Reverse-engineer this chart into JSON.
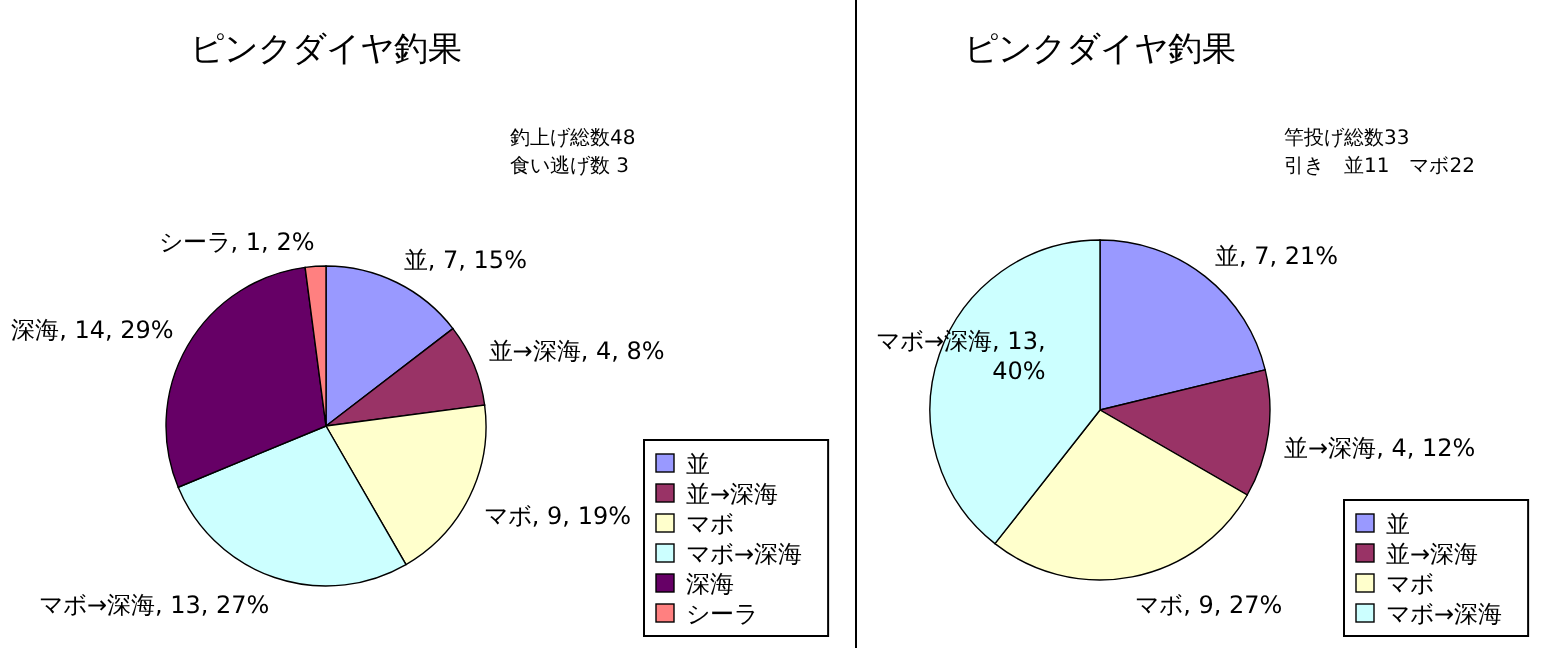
{
  "chart_data": [
    {
      "type": "pie",
      "title": "ピンクダイヤ釣果",
      "categories": [
        "並",
        "並→深海",
        "マボ",
        "マボ→深海",
        "深海",
        "シーラ"
      ],
      "values": [
        7,
        4,
        9,
        13,
        14,
        1
      ],
      "colors": [
        "#9999ff",
        "#993366",
        "#ffffcc",
        "#ccffff",
        "#660066",
        "#ff8080"
      ],
      "value_labels": [
        "並, 7, 15%",
        "並→深海, 4, 8%",
        "マボ, 9, 19%",
        "マボ→深海, 13, 27%",
        "深海, 14, 29%",
        "シーラ, 1, 2%"
      ],
      "annotations": [
        "釣上げ総数48",
        "食い逃げ数 3"
      ],
      "legend": "bottom right"
    },
    {
      "type": "pie",
      "title": "ピンクダイヤ釣果",
      "categories": [
        "並",
        "並→深海",
        "マボ",
        "マボ→深海"
      ],
      "values": [
        7,
        4,
        9,
        13
      ],
      "colors": [
        "#9999ff",
        "#993366",
        "#ffffcc",
        "#ccffff"
      ],
      "value_labels": [
        "並, 7, 21%",
        "並→深海, 4, 12%",
        "マボ, 9, 27%",
        "マボ→深海, 13, 40%"
      ],
      "annotations": [
        "竿投げ総数33",
        "引き　並11　マボ22"
      ],
      "legend": "bottom right"
    }
  ]
}
